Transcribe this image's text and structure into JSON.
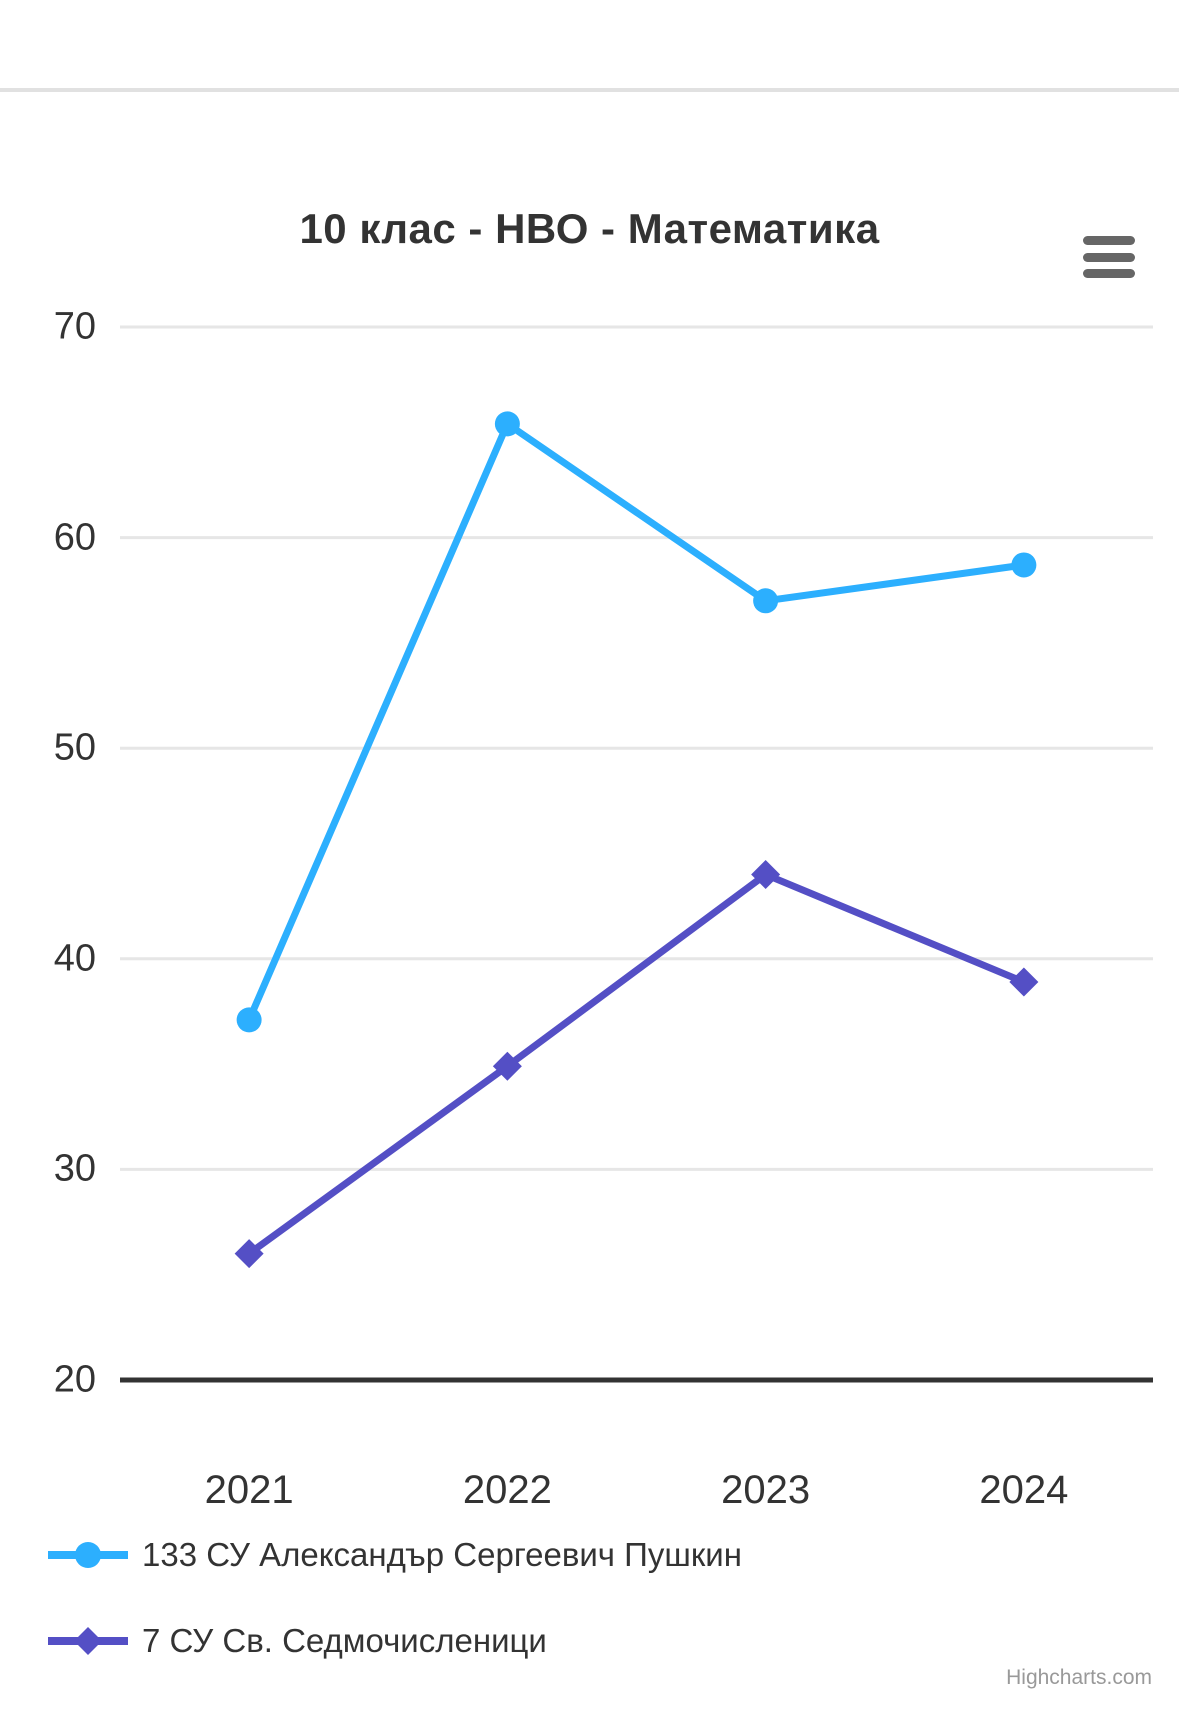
{
  "page": {
    "background_color": "#ffffff",
    "top_divider_color": "#e1e1e1"
  },
  "chart": {
    "credits": "Highcharts.com",
    "menu_icon_color": "#666666",
    "text_color": "#333333",
    "gridline_color": "#e6e6e6",
    "axis_line_color": "#333333"
  },
  "chart_data": {
    "type": "line",
    "title": "10 клас - НВО - Математика",
    "categories": [
      "2021",
      "2022",
      "2023",
      "2024"
    ],
    "series": [
      {
        "name": "133 СУ Александър Сергеевич Пушкин",
        "values": [
          37.1,
          65.4,
          57.0,
          58.7
        ],
        "color": "#2caffe",
        "marker": "circle"
      },
      {
        "name": "7 СУ Св. Седмочисленици",
        "values": [
          26.0,
          34.9,
          44.0,
          38.9
        ],
        "color": "#544fc5",
        "marker": "diamond"
      }
    ],
    "xlabel": "",
    "ylabel": "",
    "ylim": [
      20,
      70
    ],
    "yticks": [
      20,
      30,
      40,
      50,
      60,
      70
    ],
    "grid": true,
    "legend_position": "bottom-left"
  }
}
